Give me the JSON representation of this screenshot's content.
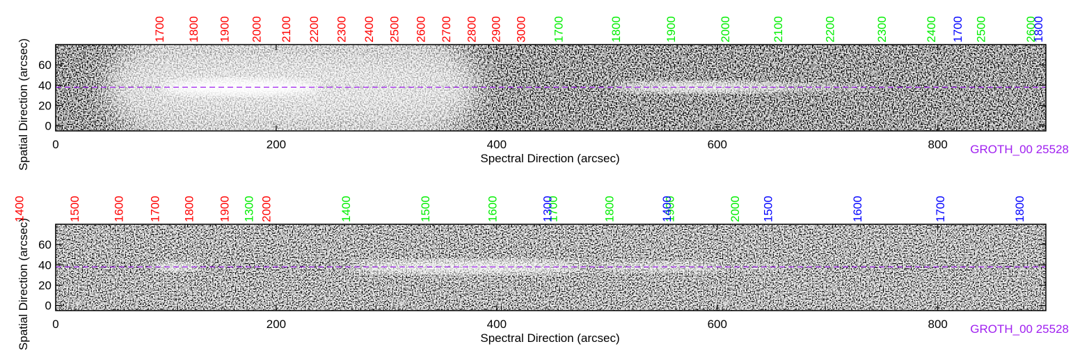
{
  "chart_data": [
    {
      "type": "spectrum2d",
      "xlabel": "Spectral Direction (arcsec)",
      "ylabel": "Spatial Direction (arcsec)",
      "annotation": "GROTH_00 25528",
      "xlim": [
        0,
        898
      ],
      "ylim": [
        -5,
        80
      ],
      "xticks": [
        0,
        200,
        400,
        600,
        800
      ],
      "yticks": [
        0,
        20,
        40,
        60
      ],
      "trace_y": 38,
      "trace_color": "#a020f0",
      "annotation_color": "#a020f0",
      "wavelength_markers": [
        {
          "color": "#ff0000",
          "values": [
            1700,
            1800,
            1900,
            2000,
            2100,
            2200,
            2300,
            2400,
            2500,
            2600,
            2700,
            2800,
            2900,
            3000
          ],
          "x": [
            94,
            125,
            153,
            182,
            209,
            234,
            259,
            284,
            307,
            331,
            354,
            377,
            399,
            422
          ]
        },
        {
          "color": "#00ee00",
          "values": [
            1700,
            1800,
            1900,
            2000,
            2100,
            2200,
            2300,
            2400,
            2500,
            2600
          ],
          "x": [
            456,
            508,
            558,
            607,
            655,
            702,
            749,
            794,
            839,
            884
          ]
        },
        {
          "color": "#0000ff",
          "values": [
            1700,
            1800
          ],
          "x": [
            818,
            891
          ]
        }
      ]
    },
    {
      "type": "spectrum2d",
      "xlabel": "Spectral Direction (arcsec)",
      "ylabel": "Spatial Direction (arcsec)",
      "annotation": "GROTH_00 25528",
      "xlim": [
        0,
        898
      ],
      "ylim": [
        -5,
        80
      ],
      "xticks": [
        0,
        200,
        400,
        600,
        800
      ],
      "yticks": [
        0,
        20,
        40,
        60
      ],
      "trace_y": 38,
      "trace_color": "#a020f0",
      "annotation_color": "#a020f0",
      "wavelength_markers": [
        {
          "color": "#ff0000",
          "values": [
            1400,
            1500,
            1600,
            1700,
            1800,
            1900,
            2000
          ],
          "x": [
            -33,
            17,
            57,
            90,
            121,
            153,
            191
          ]
        },
        {
          "color": "#00ee00",
          "values": [
            1300,
            1400,
            1500,
            1600,
            1700,
            1800,
            1900,
            2000
          ],
          "x": [
            175,
            263,
            335,
            396,
            451,
            502,
            557,
            616
          ]
        },
        {
          "color": "#0000ff",
          "values": [
            1300,
            1400,
            1500,
            1600,
            1700,
            1800
          ],
          "x": [
            446,
            554,
            646,
            727,
            802,
            874
          ]
        }
      ]
    }
  ]
}
